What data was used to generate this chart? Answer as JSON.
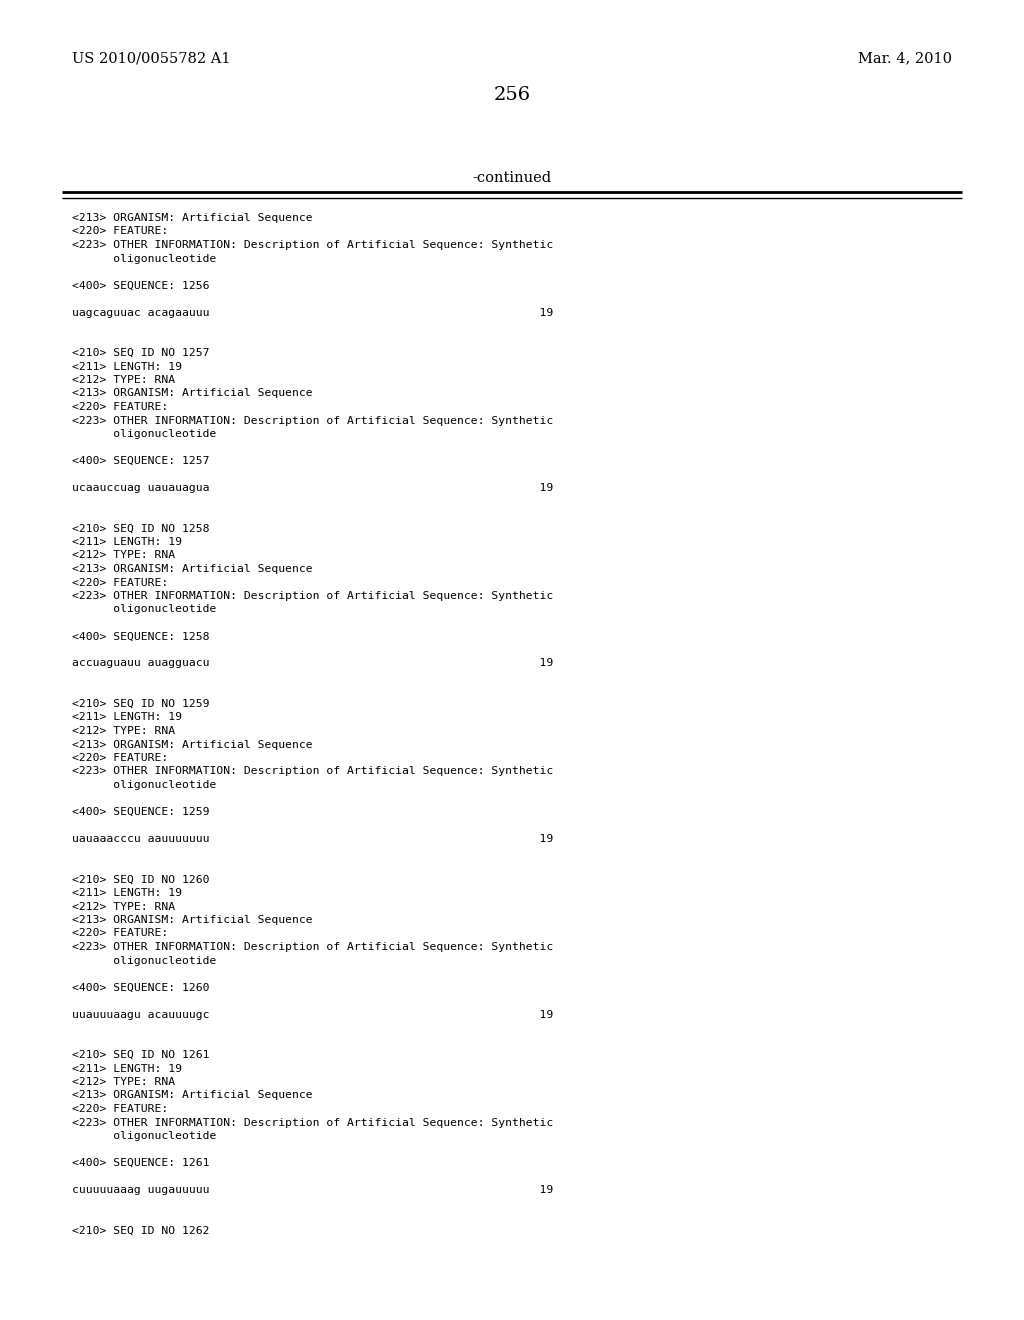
{
  "background_color": "#ffffff",
  "header_left": "US 2010/0055782 A1",
  "header_right": "Mar. 4, 2010",
  "page_number": "256",
  "continued_text": "-continued",
  "font_size_header": 10.5,
  "font_size_page": 14,
  "font_size_body": 8.2,
  "font_size_continued": 10.5,
  "content": [
    "<213> ORGANISM: Artificial Sequence",
    "<220> FEATURE:",
    "<223> OTHER INFORMATION: Description of Artificial Sequence: Synthetic",
    "      oligonucleotide",
    "",
    "<400> SEQUENCE: 1256",
    "",
    "uagcaguuac acagaauuu                                                19",
    "",
    "",
    "<210> SEQ ID NO 1257",
    "<211> LENGTH: 19",
    "<212> TYPE: RNA",
    "<213> ORGANISM: Artificial Sequence",
    "<220> FEATURE:",
    "<223> OTHER INFORMATION: Description of Artificial Sequence: Synthetic",
    "      oligonucleotide",
    "",
    "<400> SEQUENCE: 1257",
    "",
    "ucaauccuag uauauagua                                                19",
    "",
    "",
    "<210> SEQ ID NO 1258",
    "<211> LENGTH: 19",
    "<212> TYPE: RNA",
    "<213> ORGANISM: Artificial Sequence",
    "<220> FEATURE:",
    "<223> OTHER INFORMATION: Description of Artificial Sequence: Synthetic",
    "      oligonucleotide",
    "",
    "<400> SEQUENCE: 1258",
    "",
    "accuaguauu auagguacu                                                19",
    "",
    "",
    "<210> SEQ ID NO 1259",
    "<211> LENGTH: 19",
    "<212> TYPE: RNA",
    "<213> ORGANISM: Artificial Sequence",
    "<220> FEATURE:",
    "<223> OTHER INFORMATION: Description of Artificial Sequence: Synthetic",
    "      oligonucleotide",
    "",
    "<400> SEQUENCE: 1259",
    "",
    "uauaaacccu aauuuuuuu                                                19",
    "",
    "",
    "<210> SEQ ID NO 1260",
    "<211> LENGTH: 19",
    "<212> TYPE: RNA",
    "<213> ORGANISM: Artificial Sequence",
    "<220> FEATURE:",
    "<223> OTHER INFORMATION: Description of Artificial Sequence: Synthetic",
    "      oligonucleotide",
    "",
    "<400> SEQUENCE: 1260",
    "",
    "uuauuuaagu acauuuugc                                                19",
    "",
    "",
    "<210> SEQ ID NO 1261",
    "<211> LENGTH: 19",
    "<212> TYPE: RNA",
    "<213> ORGANISM: Artificial Sequence",
    "<220> FEATURE:",
    "<223> OTHER INFORMATION: Description of Artificial Sequence: Synthetic",
    "      oligonucleotide",
    "",
    "<400> SEQUENCE: 1261",
    "",
    "cuuuuuaaag uugauuuuu                                                19",
    "",
    "",
    "<210> SEQ ID NO 1262"
  ]
}
